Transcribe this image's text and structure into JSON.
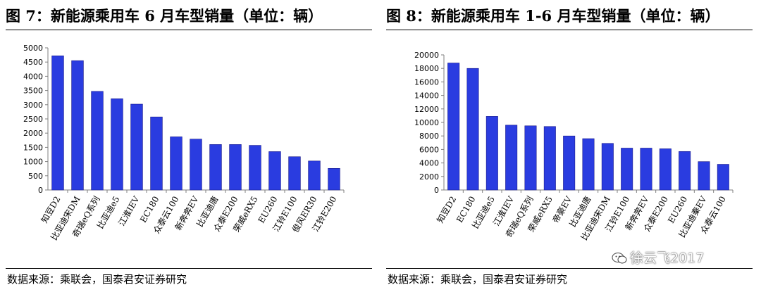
{
  "figures": [
    {
      "title": "图 7：新能源乘用车 6 月车型销量（单位：辆）",
      "source": "数据来源：乘联会，国泰君安证券研究"
    },
    {
      "title": "图 8：新能源乘用车 1-6 月车型销量（单位：辆）",
      "source": "数据来源：乘联会，国泰君安证券研究"
    }
  ],
  "watermark": {
    "text": "徐云飞2017"
  },
  "chart_data": [
    {
      "type": "bar",
      "title": "",
      "xlabel": "",
      "ylabel": "",
      "categories": [
        "知豆D2",
        "比亚迪宋DM",
        "奇瑞eQ系列",
        "比亚迪e5",
        "江淮IEV",
        "EC180",
        "众泰云100",
        "新奔奔EV",
        "比亚迪唐",
        "众泰E200",
        "荣威eRX5",
        "EU260",
        "江铃E100",
        "俊风ER30",
        "江铃E200"
      ],
      "values": [
        4720,
        4550,
        3470,
        3210,
        3020,
        2570,
        1870,
        1790,
        1600,
        1600,
        1570,
        1350,
        1170,
        1020,
        760
      ],
      "ylim": [
        0,
        5000
      ],
      "yticks": [
        0,
        500,
        1000,
        1500,
        2000,
        2500,
        3000,
        3500,
        4000,
        4500,
        5000
      ],
      "grid": false,
      "bar_color": "#2a3ce0"
    },
    {
      "type": "bar",
      "title": "",
      "xlabel": "",
      "ylabel": "",
      "categories": [
        "知豆D2",
        "EC180",
        "比亚迪e5",
        "江淮IEV",
        "奇瑞eQ系列",
        "荣威eRX5",
        "帝豪EV",
        "比亚迪唐",
        "比亚迪宋DM",
        "江铃E100",
        "新奔奔EV",
        "众泰E200",
        "EU260",
        "比亚迪秦EV",
        "众泰云100"
      ],
      "values": [
        18800,
        18000,
        10900,
        9600,
        9500,
        9400,
        8000,
        7600,
        6900,
        6200,
        6200,
        6100,
        5700,
        4200,
        3800
      ],
      "ylim": [
        0,
        20000
      ],
      "yticks": [
        0,
        2000,
        4000,
        6000,
        8000,
        10000,
        12000,
        14000,
        16000,
        18000,
        20000
      ],
      "grid": false,
      "bar_color": "#2a3ce0"
    }
  ]
}
